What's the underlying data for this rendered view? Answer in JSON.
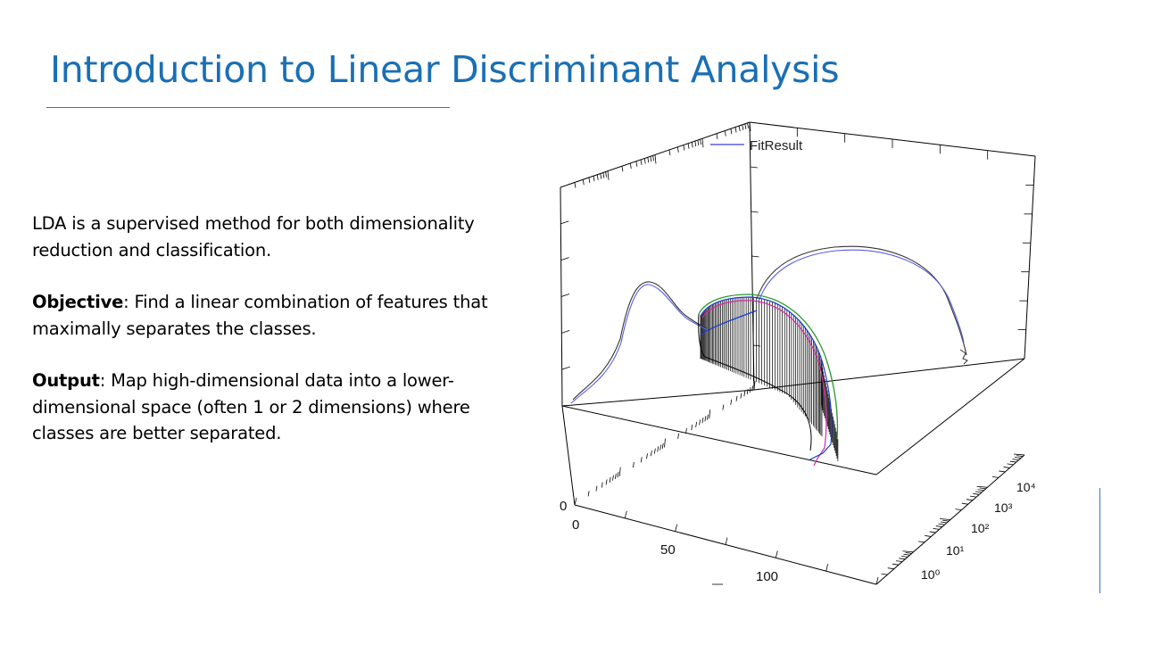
{
  "slide": {
    "title": "Introduction to Linear Discriminant Analysis",
    "paragraphs": [
      {
        "lead": "",
        "text": "LDA is a supervised method for both dimensionality reduction and classification."
      },
      {
        "lead": "Objective",
        "text": ": Find a linear combination of features that maximally separates the classes."
      },
      {
        "lead": "Output",
        "text": ": Map high-dimensional data into a lower-dimensional space (often 1 or 2 dimensions) where classes are better separated."
      }
    ]
  },
  "figure": {
    "legend_label": "FitResult",
    "z_tick_label": "0",
    "x_tick_labels": [
      "0",
      "50",
      "100"
    ],
    "y_tick_labels": [
      "10⁰",
      "10¹",
      "10²",
      "10³",
      "10⁴"
    ],
    "colors": {
      "fit": "#5a5ee0",
      "data": "#333333",
      "green": "#2a9a2a",
      "magenta": "#d02aa0",
      "blue": "#1a3ad0"
    }
  }
}
